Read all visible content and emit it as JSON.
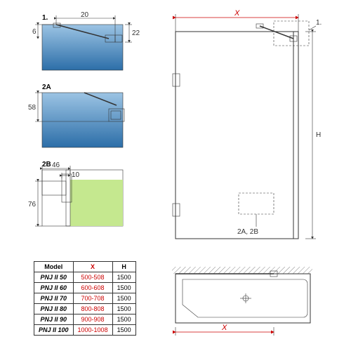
{
  "labels": {
    "detail1": "1.",
    "detail2a": "2A",
    "detail2b": "2B",
    "callout2ab": "2A, 2B",
    "callout1": "1."
  },
  "dims": {
    "d1_w": "20",
    "d1_h1": "6",
    "d1_h2": "22",
    "d2a_h": "58",
    "d2b_w": "46",
    "d2b_w2": "10",
    "d2b_h": "76",
    "main_X": "X",
    "main_H": "H",
    "bottom_X": "X"
  },
  "gradients": {
    "blue_top": "#8db6d9",
    "blue_bot": "#2c6ea8",
    "green": "#c5e88f"
  },
  "table": {
    "headers": [
      "Model",
      "X",
      "H"
    ],
    "rows": [
      [
        "PNJ II 50",
        "500-508",
        "1500"
      ],
      [
        "PNJ II 60",
        "600-608",
        "1500"
      ],
      [
        "PNJ II 70",
        "700-708",
        "1500"
      ],
      [
        "PNJ II 80",
        "800-808",
        "1500"
      ],
      [
        "PNJ II 90",
        "900-908",
        "1500"
      ],
      [
        "PNJ II 100",
        "1000-1008",
        "1500"
      ]
    ]
  }
}
